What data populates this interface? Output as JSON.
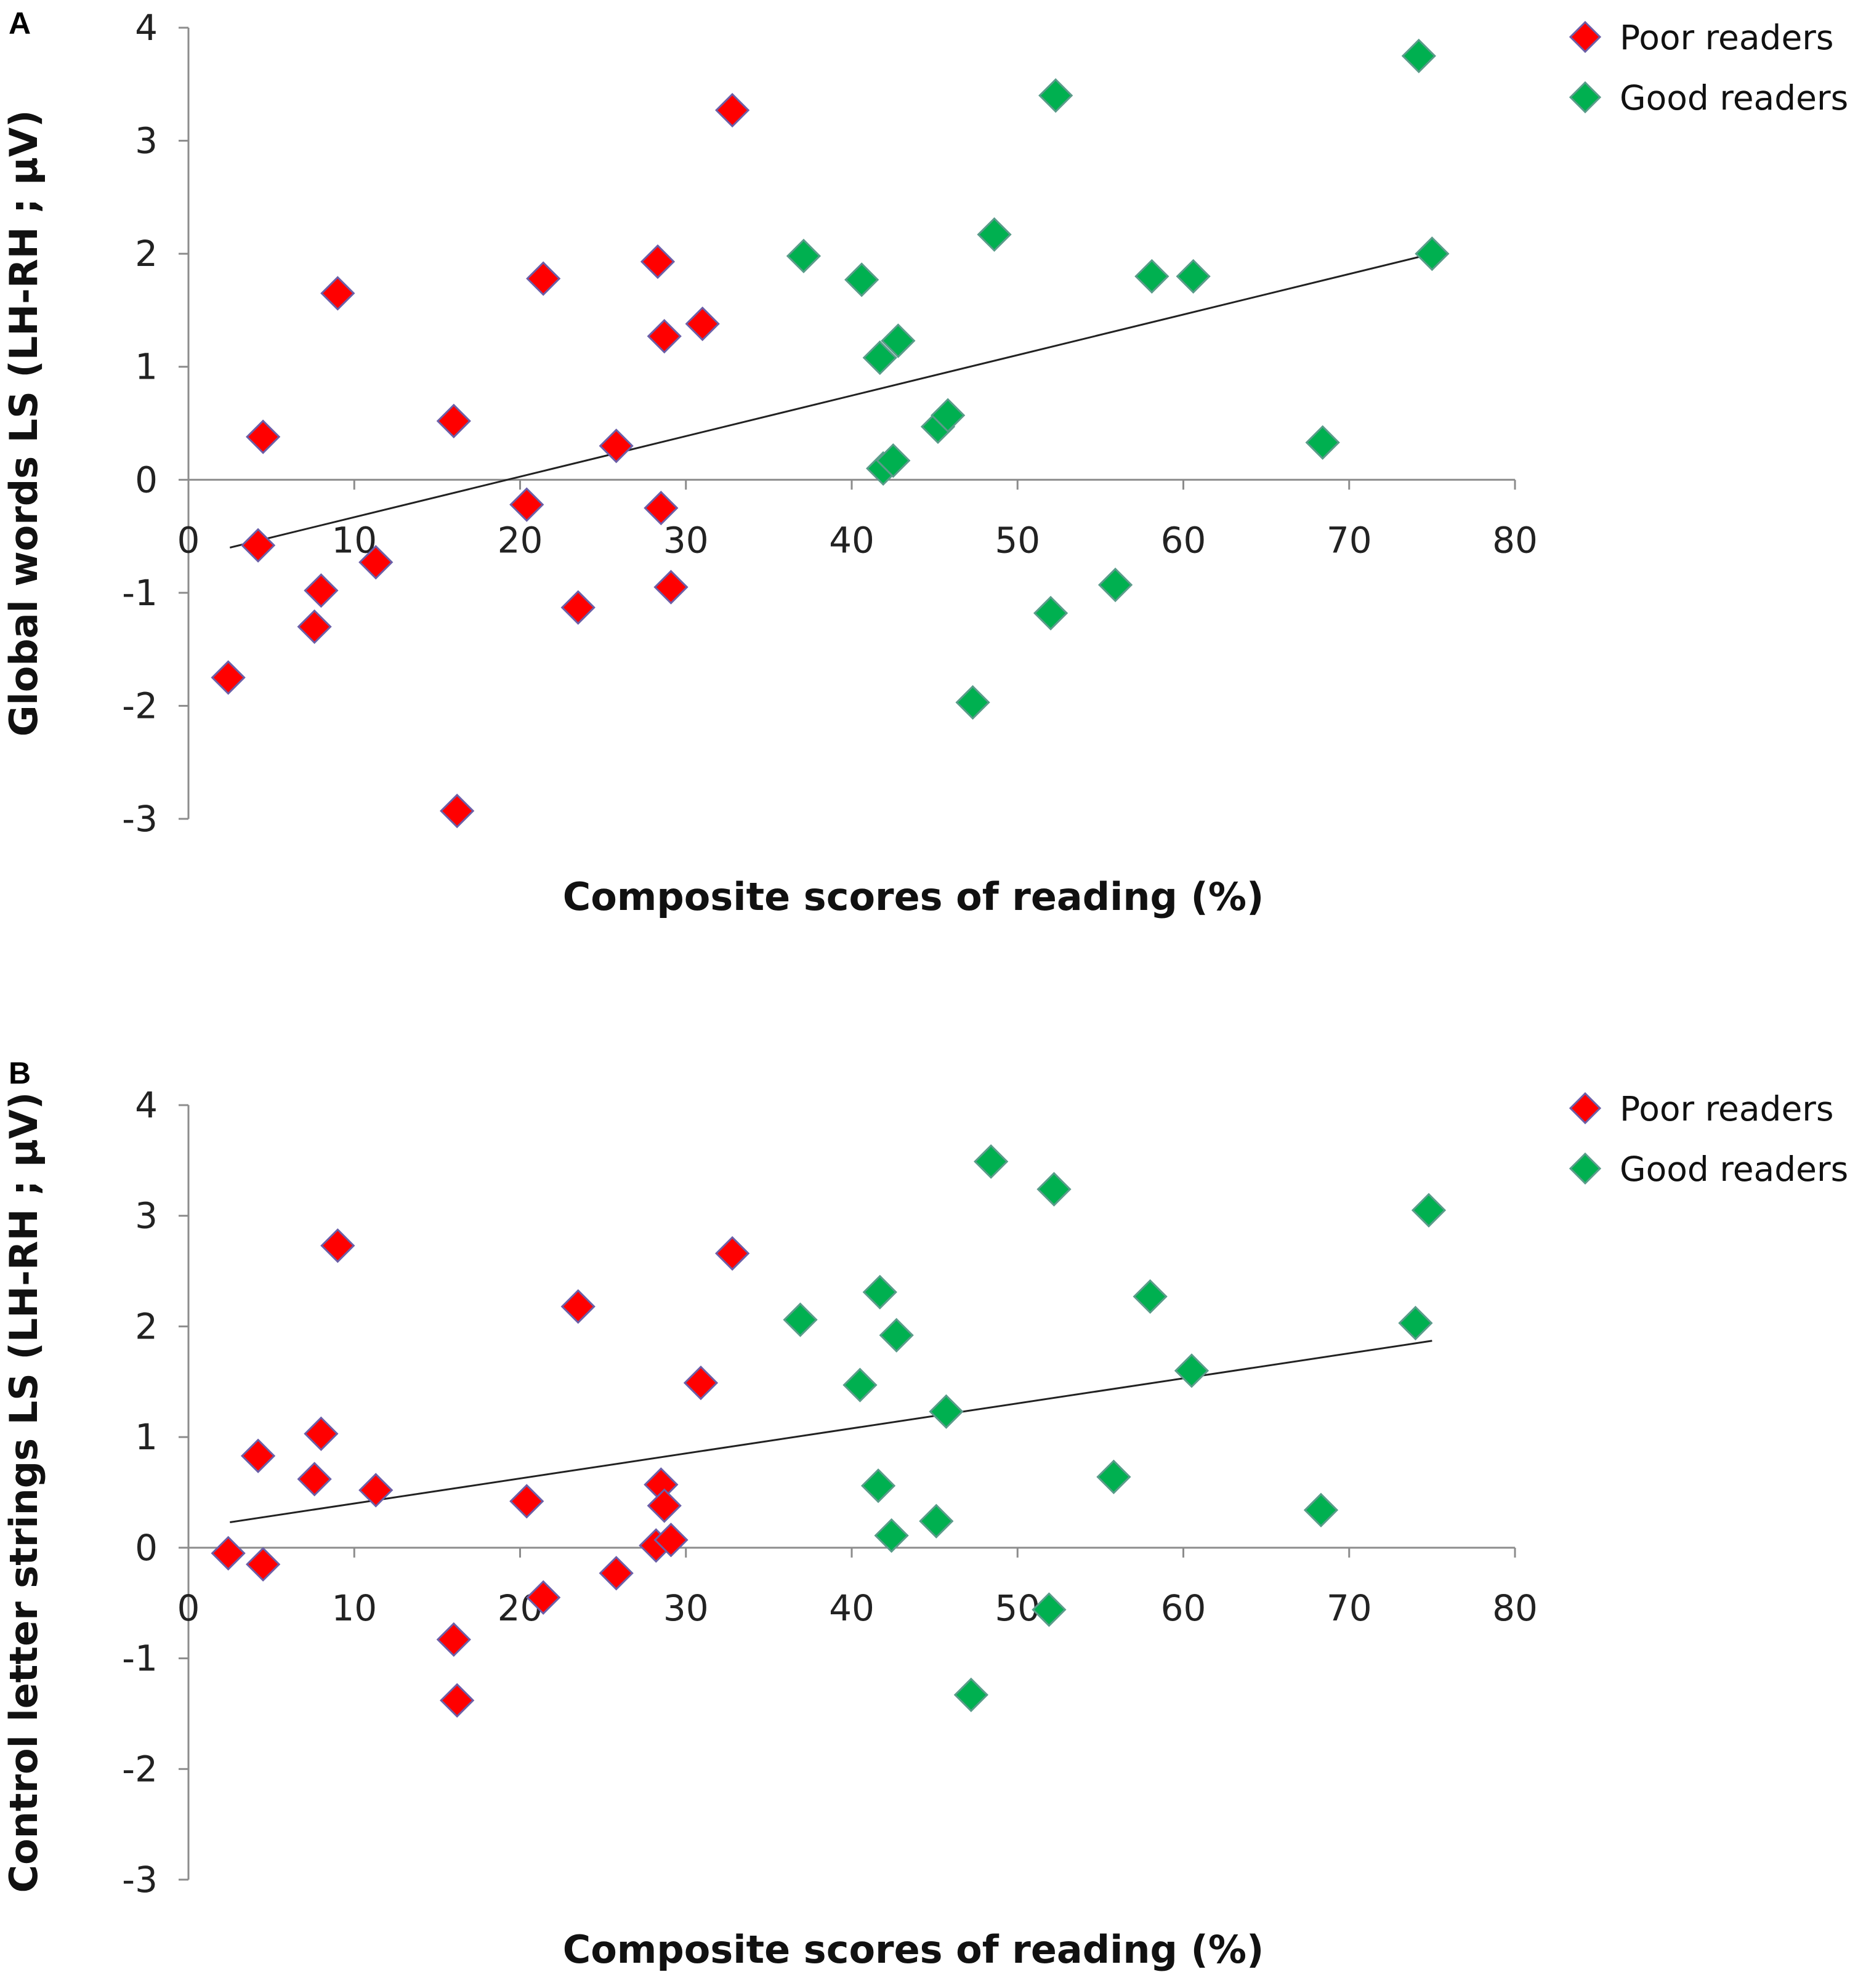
{
  "chart_data": [
    {
      "panel": "A",
      "type": "scatter",
      "xlabel": "Composite scores of reading (%)",
      "ylabel": "Global words LS (LH-RH ; µV)",
      "xlim": [
        0,
        80
      ],
      "ylim": [
        -3,
        4
      ],
      "xticks": [
        "0",
        "10",
        "20",
        "30",
        "40",
        "50",
        "60",
        "70",
        "80"
      ],
      "yticks": [
        "4",
        "3",
        "2",
        "1",
        "0",
        "-1",
        "-2",
        "-3"
      ],
      "trendline": {
        "x": [
          2.5,
          75
        ],
        "y": [
          -0.6,
          2.0
        ]
      },
      "legend": [
        "Poor readers",
        "Good readers"
      ],
      "series": [
        {
          "name": "Poor readers",
          "color": "#ff0000",
          "x": [
            2.4,
            4.2,
            4.5,
            7.6,
            8.0,
            9.0,
            11.3,
            16.0,
            16.2,
            20.4,
            21.4,
            23.5,
            25.8,
            28.3,
            28.5,
            28.7,
            29.1,
            31.0,
            32.8
          ],
          "y": [
            -1.75,
            -0.58,
            0.38,
            -1.3,
            -0.98,
            1.65,
            -0.73,
            0.52,
            -2.93,
            -0.22,
            1.78,
            -1.13,
            0.3,
            1.93,
            -0.25,
            1.27,
            -0.95,
            1.38,
            3.27
          ]
        },
        {
          "name": "Good readers",
          "color": "#00b050",
          "x": [
            37.1,
            40.6,
            41.7,
            41.9,
            42.5,
            42.8,
            45.2,
            45.8,
            47.3,
            48.6,
            52.0,
            52.3,
            55.9,
            58.1,
            60.6,
            68.4,
            74.2,
            75.0
          ],
          "y": [
            1.98,
            1.77,
            1.08,
            0.1,
            0.17,
            1.23,
            0.47,
            0.57,
            -1.97,
            2.17,
            -1.18,
            3.4,
            -0.93,
            1.8,
            1.8,
            0.33,
            3.75,
            2.0
          ]
        }
      ]
    },
    {
      "panel": "B",
      "type": "scatter",
      "xlabel": "Composite scores of reading (%)",
      "ylabel": "Control letter strings LS (LH-RH ; µV)",
      "xlim": [
        0,
        80
      ],
      "ylim": [
        -3,
        4
      ],
      "xticks": [
        "0",
        "10",
        "20",
        "30",
        "40",
        "50",
        "60",
        "70",
        "80"
      ],
      "yticks": [
        "4",
        "3",
        "2",
        "1",
        "0",
        "-1",
        "-2",
        "-3"
      ],
      "trendline": {
        "x": [
          2.5,
          75
        ],
        "y": [
          0.23,
          1.87
        ]
      },
      "legend": [
        "Poor readers",
        "Good readers"
      ],
      "series": [
        {
          "name": "Poor readers",
          "color": "#ff0000",
          "x": [
            2.4,
            4.2,
            4.5,
            7.6,
            8.0,
            9.0,
            11.3,
            16.0,
            16.2,
            20.4,
            21.4,
            23.5,
            25.8,
            28.2,
            28.5,
            28.7,
            29.1,
            30.9,
            32.8
          ],
          "y": [
            -0.05,
            0.83,
            -0.15,
            0.62,
            1.03,
            2.73,
            0.52,
            -0.83,
            -1.38,
            0.42,
            -0.45,
            2.18,
            -0.23,
            0.02,
            0.57,
            0.38,
            0.07,
            1.49,
            2.66
          ]
        },
        {
          "name": "Good readers",
          "color": "#00b050",
          "x": [
            36.9,
            40.5,
            41.6,
            41.7,
            42.4,
            42.7,
            45.1,
            45.7,
            47.2,
            48.4,
            51.9,
            52.2,
            55.8,
            58.0,
            60.5,
            68.3,
            74.0,
            74.8
          ],
          "y": [
            2.06,
            1.47,
            0.56,
            2.31,
            0.11,
            1.92,
            0.24,
            1.23,
            -1.33,
            3.49,
            -0.56,
            3.24,
            0.64,
            2.27,
            1.6,
            0.34,
            2.03,
            3.05
          ]
        }
      ]
    }
  ]
}
